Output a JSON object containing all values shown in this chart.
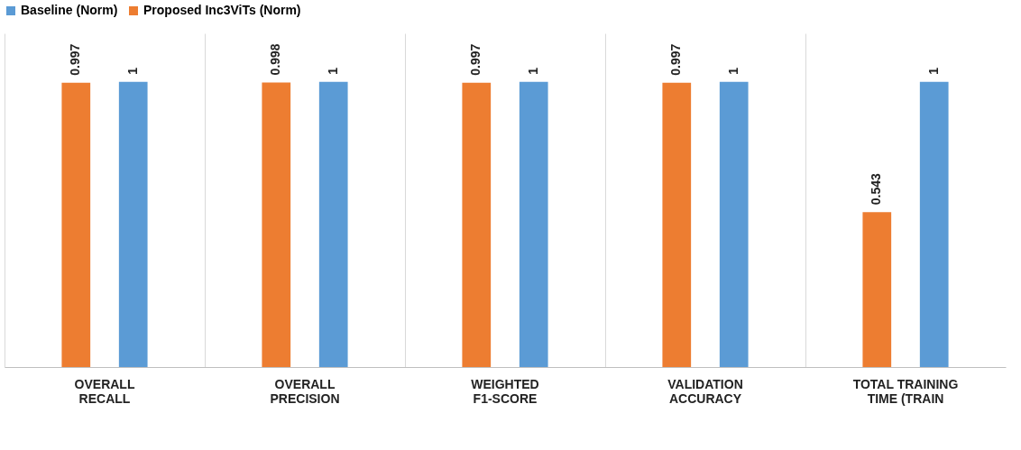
{
  "chart_data": {
    "type": "bar",
    "categories": [
      "OVERALL RECALL",
      "OVERALL PRECISION",
      "WEIGHTED F1-SCORE",
      "VALIDATION ACCURACY",
      "TOTAL TRAINING TIME (TRAIN"
    ],
    "series": [
      {
        "name": "Baseline (Norm)",
        "color": "#5b9bd5",
        "values": [
          1,
          1,
          1,
          1,
          1
        ]
      },
      {
        "name": "Proposed Inc3ViTs (Norm)",
        "color": "#ed7d31",
        "values": [
          0.997,
          0.998,
          0.997,
          0.997,
          0.543
        ]
      }
    ],
    "data_labels": true,
    "legend": "top",
    "grid": "x"
  }
}
